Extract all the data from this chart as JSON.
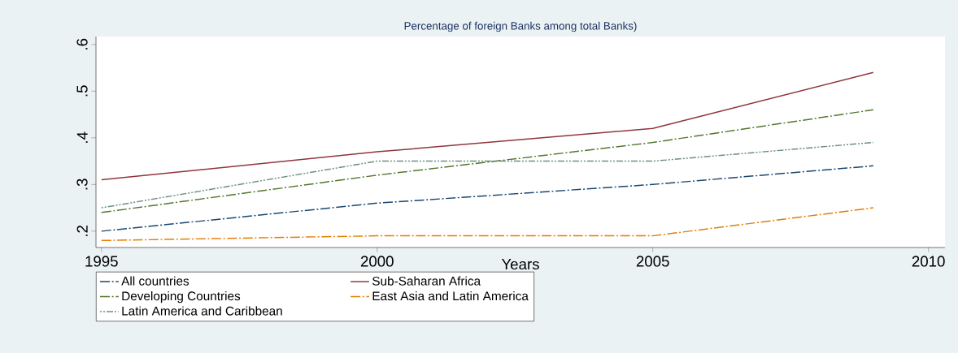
{
  "chart_data": {
    "type": "line",
    "title": "Percentage of foreign Banks among total Banks)",
    "xlabel": "Years",
    "x": [
      1995,
      2000,
      2005,
      2009
    ],
    "series": [
      {
        "name": "All countries",
        "color": "#1a476f",
        "line_style": "dashed",
        "values": [
          0.2,
          0.26,
          0.3,
          0.34
        ]
      },
      {
        "name": "Sub-Saharan Africa",
        "color": "#90353b",
        "line_style": "solid",
        "values": [
          0.31,
          0.37,
          0.42,
          0.54
        ]
      },
      {
        "name": "Developing Countries",
        "color": "#55752f",
        "line_style": "dashed",
        "values": [
          0.24,
          0.32,
          0.39,
          0.46
        ]
      },
      {
        "name": "East Asia and Latin America",
        "color": "#e37e00",
        "line_style": "dashed",
        "values": [
          0.18,
          0.19,
          0.19,
          0.25
        ]
      },
      {
        "name": "Latin America and Caribbean",
        "color": "#6e8e84",
        "line_style": "dotted",
        "values": [
          0.25,
          0.35,
          0.35,
          0.39
        ]
      }
    ],
    "xlim": [
      1994.9,
      2010.3
    ],
    "ylim": [
      0.165,
      0.617
    ],
    "xticks": [
      1995,
      2000,
      2005,
      2010
    ],
    "yticks": [
      {
        "value": 0.2,
        "label": ".2"
      },
      {
        "value": 0.3,
        "label": ".3"
      },
      {
        "value": 0.4,
        "label": ".4"
      },
      {
        "value": 0.5,
        "label": ".5"
      },
      {
        "value": 0.6,
        "label": ".6"
      }
    ],
    "grid": false,
    "legend": "bottom"
  }
}
